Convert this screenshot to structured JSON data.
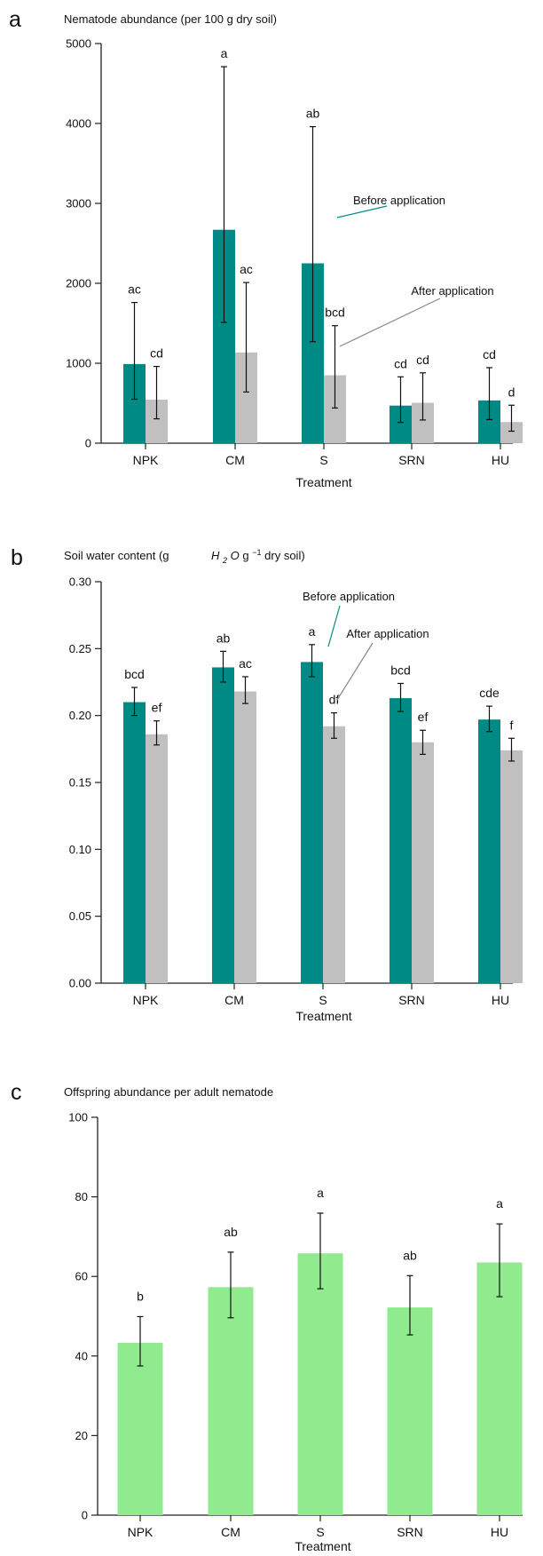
{
  "chart_data": [
    {
      "panel_label": "a",
      "type": "bar",
      "title": "Nematode abundance (per 100 g dry soil)",
      "xlabel": "Treatment",
      "categories": [
        "NPK",
        "CM",
        "S",
        "SRN",
        "HU"
      ],
      "ylim": [
        0,
        5000
      ],
      "yticks": [
        0,
        1000,
        2000,
        3000,
        4000,
        5000
      ],
      "y_tick_labels": [
        "0",
        "1000",
        "2000",
        "3000",
        "4000",
        "5000"
      ],
      "series": [
        {
          "name": "Before application",
          "color": "#008a86",
          "values": [
            990,
            2670,
            2250,
            470,
            535
          ],
          "err_low": [
            550,
            1510,
            1270,
            260,
            295
          ],
          "err_high": [
            1760,
            4710,
            3960,
            830,
            945
          ],
          "letters": [
            "ac",
            "a",
            "ab",
            "cd",
            "cd"
          ]
        },
        {
          "name": "After application",
          "color": "#c0c0c0",
          "values": [
            545,
            1135,
            850,
            505,
            265
          ],
          "err_low": [
            305,
            640,
            440,
            290,
            150
          ],
          "err_high": [
            960,
            2010,
            1470,
            880,
            475
          ],
          "letters": [
            "cd",
            "ac",
            "bcd",
            "cd",
            "d"
          ]
        }
      ],
      "annotations": [
        {
          "text": "Before application",
          "color": "#008a86"
        },
        {
          "text": "After application",
          "color": "#888888"
        }
      ]
    },
    {
      "panel_label": "b",
      "type": "bar",
      "title": "Soil water content (g",
      "title_formula": "H",
      "title_formula_sub": "2",
      "title_formula_tail": "O",
      "title_unit": " g",
      "title_exponent": "−1",
      "title_end": " dry soil)",
      "xlabel": "Treatment",
      "categories": [
        "NPK",
        "CM",
        "S",
        "SRN",
        "HU"
      ],
      "ylim": [
        0,
        0.3
      ],
      "yticks": [
        0,
        0.05,
        0.1,
        0.15,
        0.2,
        0.25,
        0.3
      ],
      "y_tick_labels": [
        "0.00",
        "0.05",
        "0.10",
        "0.15",
        "0.20",
        "0.25",
        "0.30"
      ],
      "series": [
        {
          "name": "Before application",
          "color": "#008a86",
          "values": [
            0.21,
            0.236,
            0.24,
            0.213,
            0.197
          ],
          "err_low": [
            0.2,
            0.225,
            0.229,
            0.203,
            0.188
          ],
          "err_high": [
            0.221,
            0.248,
            0.253,
            0.224,
            0.207
          ],
          "letters": [
            "bcd",
            "ab",
            "a",
            "bcd",
            "cde"
          ]
        },
        {
          "name": "After application",
          "color": "#c0c0c0",
          "values": [
            0.186,
            0.218,
            0.192,
            0.18,
            0.174
          ],
          "err_low": [
            0.178,
            0.209,
            0.183,
            0.171,
            0.166
          ],
          "err_high": [
            0.196,
            0.229,
            0.202,
            0.189,
            0.183
          ],
          "letters": [
            "ef",
            "ac",
            "df",
            "ef",
            "f"
          ]
        }
      ],
      "annotations": [
        {
          "text": "Before application",
          "color": "#008a86"
        },
        {
          "text": "After application",
          "color": "#888888"
        }
      ]
    },
    {
      "panel_label": "c",
      "type": "bar",
      "title": "Offspring abundance per adult nematode",
      "xlabel": "Treatment",
      "categories": [
        "NPK",
        "CM",
        "S",
        "SRN",
        "HU"
      ],
      "ylim": [
        0,
        100
      ],
      "yticks": [
        0,
        20,
        40,
        60,
        80,
        100
      ],
      "y_tick_labels": [
        "0",
        "20",
        "40",
        "60",
        "80",
        "100"
      ],
      "series": [
        {
          "color": "#90ea8e",
          "values": [
            43.3,
            57.3,
            65.8,
            52.2,
            63.5
          ],
          "err_low": [
            37.5,
            49.6,
            56.9,
            45.3,
            54.9
          ],
          "err_high": [
            49.9,
            66.1,
            75.9,
            60.2,
            73.2
          ],
          "letters": [
            "b",
            "ab",
            "a",
            "ab",
            "a"
          ]
        }
      ]
    }
  ]
}
